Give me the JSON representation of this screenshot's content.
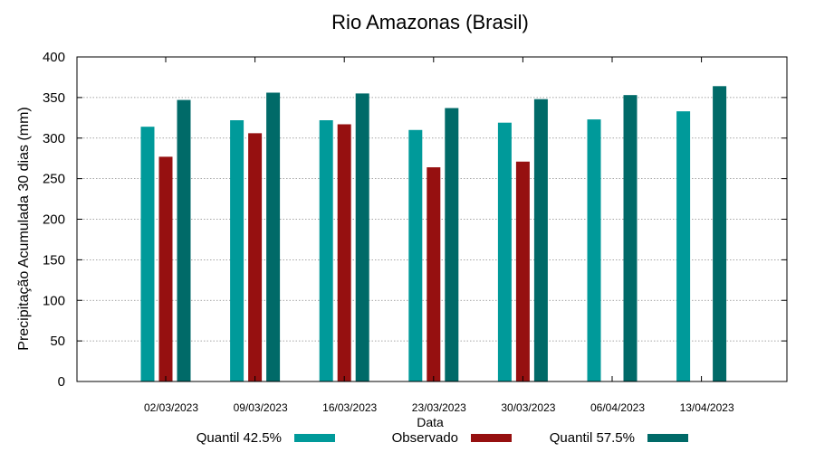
{
  "chart_data": {
    "type": "bar",
    "title": "Rio Amazonas (Brasil)",
    "xlabel": "Data",
    "ylabel": "Precipitação Acumulada 30 dias (mm)",
    "ylim": [
      0,
      400
    ],
    "yticks": [
      0,
      50,
      100,
      150,
      200,
      250,
      300,
      350,
      400
    ],
    "grid": true,
    "legend": "bottom",
    "categories": [
      "02/03/2023",
      "09/03/2023",
      "16/03/2023",
      "23/03/2023",
      "30/03/2023",
      "06/04/2023",
      "13/04/2023"
    ],
    "series": [
      {
        "name": "Quantil 42.5%",
        "color": "#009a9a",
        "values": [
          314,
          322,
          322,
          310,
          319,
          323,
          333
        ]
      },
      {
        "name": "Observado",
        "color": "#961010",
        "values": [
          277,
          306,
          317,
          264,
          271,
          null,
          null
        ]
      },
      {
        "name": "Quantil 57.5%",
        "color": "#006a68",
        "values": [
          347,
          356,
          355,
          337,
          348,
          353,
          364
        ]
      }
    ]
  }
}
